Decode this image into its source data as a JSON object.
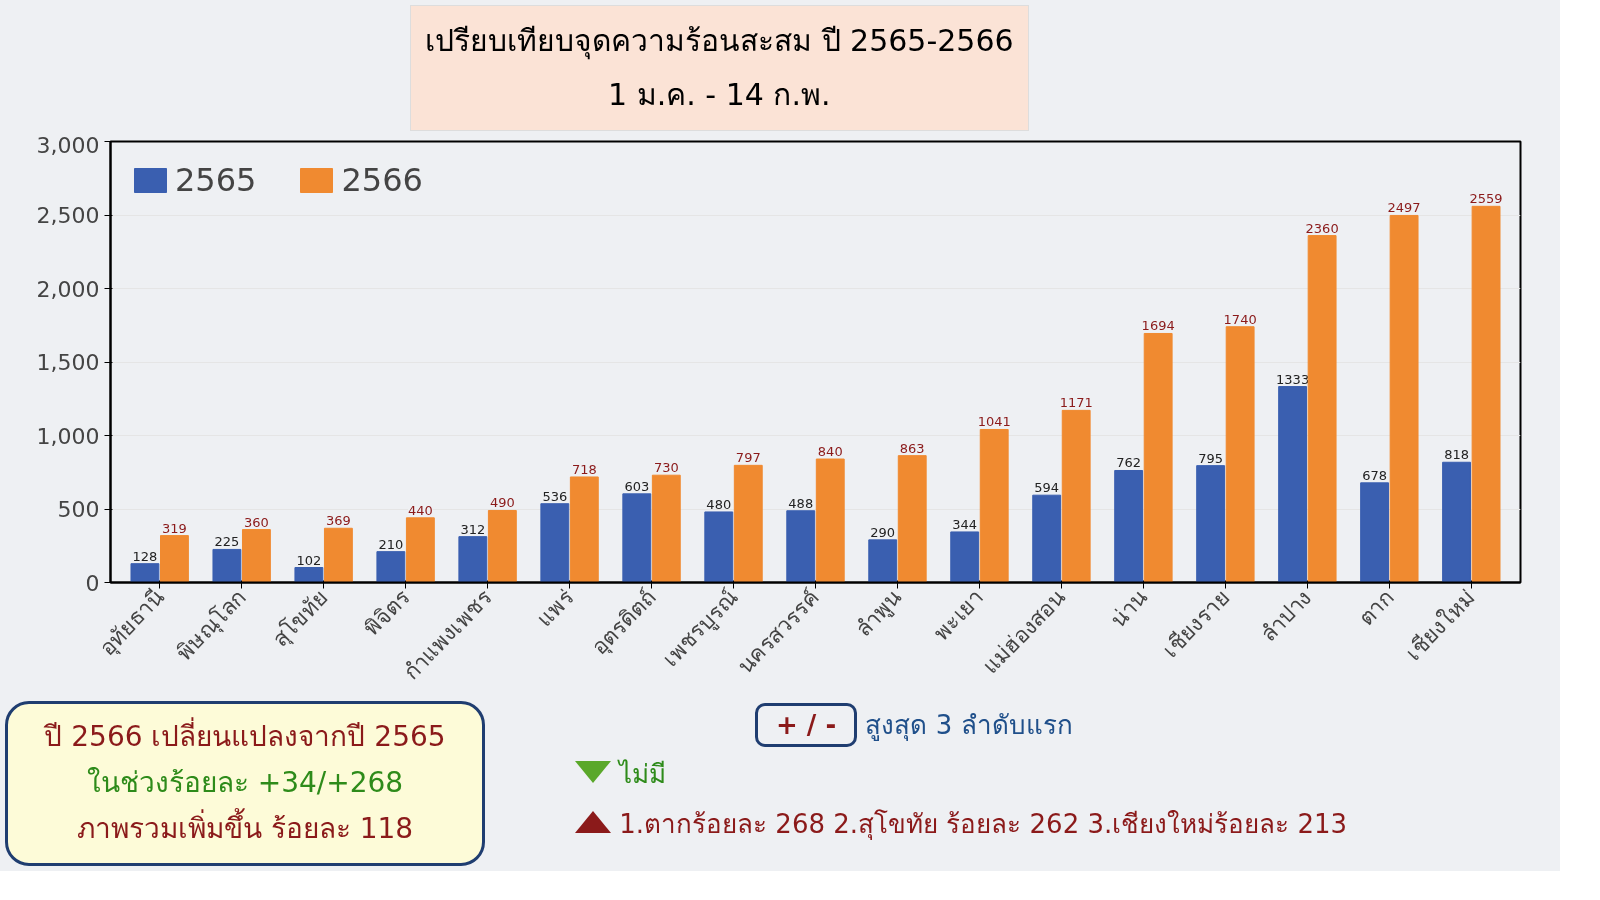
{
  "chart_data": {
    "type": "bar",
    "title": "เปรียบเทียบจุดความร้อนสะสม ปี 2565-2566",
    "subtitle": "1 ม.ค. - 14 ก.พ.",
    "categories": [
      "อุทัยธานี",
      "พิษณุโลก",
      "สุโขทัย",
      "พิจิตร",
      "กำแพงเพชร",
      "แพร่",
      "อุตรดิตถ์",
      "เพชรบูรณ์",
      "นครสวรรค์",
      "ลำพูน",
      "พะเยา",
      "แม่ฮ่องสอน",
      "น่าน",
      "เชียงราย",
      "ลำปาง",
      "ตาก",
      "เชียงใหม่"
    ],
    "series": [
      {
        "name": "2565",
        "color": "#3a5fb0",
        "values": [
          128,
          225,
          102,
          210,
          312,
          536,
          603,
          480,
          488,
          290,
          344,
          594,
          762,
          795,
          1333,
          678,
          818
        ]
      },
      {
        "name": "2566",
        "color": "#f08a30",
        "values": [
          319,
          360,
          369,
          440,
          490,
          718,
          730,
          797,
          840,
          863,
          1041,
          1171,
          1694,
          1740,
          2360,
          2497,
          2559
        ]
      }
    ],
    "data_labels": true,
    "ylim": [
      0,
      3000
    ],
    "yticks": [
      0,
      {
        "value": 500,
        "label": "500"
      },
      {
        "value": 1000,
        "label": "1,000"
      },
      {
        "value": 1500,
        "label": "1,500"
      },
      {
        "value": 2000,
        "label": "2,000"
      },
      {
        "value": 2500,
        "label": "2,500"
      },
      {
        "value": 3000,
        "label": "3,000"
      }
    ],
    "grid": "y",
    "legend": "top left",
    "annotations": [
      "ปี 2566 เปลี่ยนแปลงจากปี 2565",
      "ในช่วงร้อยละ +34/+268",
      "ภาพรวมเพิ่มขึ้น ร้อยละ 118",
      "+ / -",
      "สูงสุด 3 ลำดับแรก",
      "ไม่มี",
      "1.ตากร้อยละ 268  2.สุโขทัย ร้อยละ 262 3.เชียงใหม่ร้อยละ 213"
    ]
  }
}
